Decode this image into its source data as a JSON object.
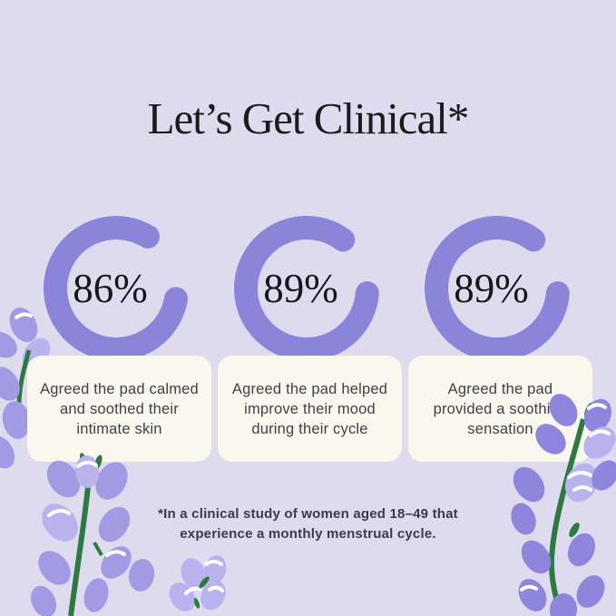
{
  "header": {
    "title": "Let’s Get Clinical*"
  },
  "chart_data": [
    {
      "type": "pie",
      "subtype": "donut",
      "label": "86%",
      "value_percent": 86,
      "values": [
        86,
        14
      ],
      "caption": "Agreed the pad calmed and soothed their intimate skin"
    },
    {
      "type": "pie",
      "subtype": "donut",
      "label": "89%",
      "value_percent": 89,
      "values": [
        89,
        11
      ],
      "caption": "Agreed the pad helped improve their mood during their cycle"
    },
    {
      "type": "pie",
      "subtype": "donut",
      "label": "89%",
      "value_percent": 89,
      "values": [
        89,
        11
      ],
      "caption": "Agreed the pad provided a soothing sensation"
    }
  ],
  "footnote": {
    "text": "*In a clinical study of women aged 18–49 that experience a monthly menstrual cycle."
  },
  "colors": {
    "background": "#dedbef",
    "accent": "#8b85da",
    "card_background": "#faf7ee",
    "title_text": "#1b1b1b",
    "body_text": "#3f3f46",
    "footnote_text": "#3a3a4e",
    "stem_green": "#2c7a41",
    "petal_main": "#a29be3",
    "petal_light": "#b9b2ec",
    "petal_dark": "#8e86dd"
  },
  "decorations": {
    "flowers": [
      "lavender-sprig-left",
      "lavender-sprig-bottom-left",
      "lavender-sprig-bottom-right",
      "lavender-sprig-bottom-center"
    ]
  }
}
